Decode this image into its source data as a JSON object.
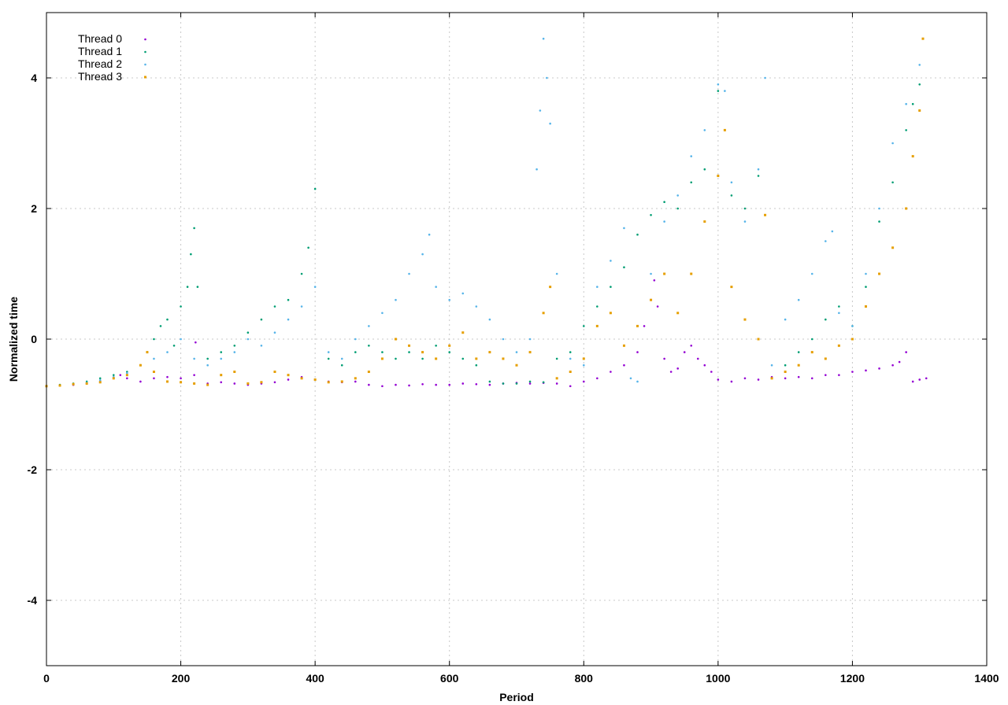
{
  "chart_data": {
    "type": "scatter",
    "title": "",
    "xlabel": "Period",
    "ylabel": "Normalized time",
    "xlim": [
      0,
      1400
    ],
    "ylim": [
      -5,
      5
    ],
    "xticks": [
      0,
      200,
      400,
      600,
      800,
      1000,
      1200,
      1400
    ],
    "yticks": [
      -4,
      -2,
      0,
      2,
      4
    ],
    "xtick_labels": [
      "0",
      "200",
      "400",
      "600",
      "800",
      "1000",
      "1200",
      "1400"
    ],
    "ytick_labels": [
      "-4",
      "-2",
      "0",
      "2",
      "4"
    ],
    "grid": true,
    "legend_position": "top-left",
    "series": [
      {
        "name": "Thread 0",
        "color": "#9400d3",
        "marker": "dot",
        "x": [
          0,
          20,
          40,
          60,
          80,
          100,
          110,
          120,
          140,
          160,
          180,
          200,
          220,
          222,
          240,
          260,
          280,
          300,
          320,
          340,
          360,
          380,
          400,
          420,
          440,
          460,
          480,
          500,
          520,
          540,
          560,
          580,
          600,
          620,
          640,
          660,
          680,
          700,
          720,
          740,
          760,
          780,
          800,
          820,
          840,
          860,
          880,
          890,
          900,
          905,
          910,
          920,
          930,
          940,
          950,
          960,
          970,
          980,
          990,
          1000,
          1020,
          1040,
          1060,
          1080,
          1100,
          1120,
          1140,
          1160,
          1180,
          1200,
          1220,
          1240,
          1260,
          1270,
          1280,
          1290,
          1300,
          1310
        ],
        "y": [
          -0.72,
          -0.71,
          -0.7,
          -0.68,
          -0.65,
          -0.6,
          -0.55,
          -0.6,
          -0.65,
          -0.6,
          -0.58,
          -0.6,
          -0.55,
          -0.05,
          -0.68,
          -0.66,
          -0.68,
          -0.7,
          -0.68,
          -0.66,
          -0.62,
          -0.58,
          -0.62,
          -0.65,
          -0.66,
          -0.65,
          -0.7,
          -0.72,
          -0.7,
          -0.71,
          -0.69,
          -0.7,
          -0.7,
          -0.68,
          -0.69,
          -0.7,
          -0.68,
          -0.67,
          -0.68,
          -0.67,
          -0.68,
          -0.72,
          -0.65,
          -0.6,
          -0.5,
          -0.4,
          -0.2,
          0.2,
          0.6,
          0.9,
          0.5,
          -0.3,
          -0.5,
          -0.45,
          -0.2,
          -0.1,
          -0.3,
          -0.4,
          -0.5,
          -0.62,
          -0.65,
          -0.6,
          -0.62,
          -0.58,
          -0.6,
          -0.58,
          -0.6,
          -0.55,
          -0.55,
          -0.5,
          -0.48,
          -0.45,
          -0.4,
          -0.35,
          -0.2,
          -0.65,
          -0.62,
          -0.6
        ]
      },
      {
        "name": "Thread 1",
        "color": "#009e73",
        "marker": "dot",
        "x": [
          0,
          20,
          40,
          60,
          80,
          100,
          120,
          140,
          150,
          160,
          170,
          180,
          190,
          200,
          210,
          215,
          220,
          225,
          240,
          260,
          280,
          300,
          320,
          340,
          360,
          380,
          390,
          400,
          420,
          440,
          460,
          480,
          500,
          520,
          540,
          560,
          580,
          600,
          620,
          640,
          660,
          680,
          700,
          720,
          740,
          760,
          780,
          800,
          820,
          840,
          860,
          880,
          900,
          920,
          940,
          960,
          980,
          1000,
          1020,
          1040,
          1060,
          1080,
          1100,
          1120,
          1140,
          1160,
          1180,
          1200,
          1220,
          1240,
          1260,
          1280,
          1290,
          1300
        ],
        "y": [
          -0.72,
          -0.7,
          -0.68,
          -0.65,
          -0.6,
          -0.55,
          -0.5,
          -0.4,
          -0.2,
          0.0,
          0.2,
          0.3,
          -0.1,
          0.5,
          0.8,
          1.3,
          1.7,
          0.8,
          -0.3,
          -0.2,
          -0.1,
          0.1,
          0.3,
          0.5,
          0.6,
          1.0,
          1.4,
          2.3,
          -0.3,
          -0.4,
          -0.2,
          -0.1,
          -0.2,
          -0.3,
          -0.2,
          -0.3,
          -0.1,
          -0.2,
          -0.3,
          -0.4,
          -0.65,
          -0.68,
          -0.68,
          -0.65,
          -0.66,
          -0.3,
          -0.2,
          0.2,
          0.5,
          0.8,
          1.1,
          1.6,
          1.9,
          2.1,
          2.0,
          2.4,
          2.6,
          3.8,
          2.2,
          2.0,
          2.5,
          -0.6,
          -0.4,
          -0.2,
          0.0,
          0.3,
          0.5,
          0.2,
          0.8,
          1.8,
          2.4,
          3.2,
          3.6,
          3.9
        ]
      },
      {
        "name": "Thread 2",
        "color": "#56b4e9",
        "marker": "dot",
        "x": [
          0,
          20,
          40,
          60,
          80,
          100,
          120,
          140,
          160,
          180,
          200,
          220,
          240,
          260,
          280,
          300,
          320,
          340,
          360,
          380,
          400,
          420,
          440,
          460,
          480,
          500,
          520,
          540,
          560,
          570,
          580,
          600,
          620,
          640,
          660,
          680,
          700,
          720,
          730,
          735,
          740,
          745,
          750,
          760,
          780,
          800,
          820,
          840,
          860,
          870,
          880,
          900,
          920,
          940,
          960,
          980,
          1000,
          1010,
          1020,
          1040,
          1060,
          1070,
          1080,
          1100,
          1120,
          1140,
          1160,
          1170,
          1180,
          1200,
          1220,
          1240,
          1260,
          1280,
          1300,
          1305
        ],
        "y": [
          -0.72,
          -0.71,
          -0.69,
          -0.67,
          -0.63,
          -0.58,
          -0.52,
          -0.4,
          -0.3,
          -0.2,
          0.0,
          -0.3,
          -0.4,
          -0.3,
          -0.2,
          0.0,
          -0.1,
          0.1,
          0.3,
          0.5,
          0.8,
          -0.2,
          -0.3,
          0.0,
          0.2,
          0.4,
          0.6,
          1.0,
          1.3,
          1.6,
          0.8,
          0.6,
          0.7,
          0.5,
          0.3,
          0.0,
          -0.2,
          0.0,
          2.6,
          3.5,
          4.6,
          4.0,
          3.3,
          1.0,
          -0.3,
          -0.4,
          0.8,
          1.2,
          1.7,
          -0.6,
          -0.65,
          1.0,
          1.8,
          2.2,
          2.8,
          3.2,
          3.9,
          3.8,
          2.4,
          1.8,
          2.6,
          4.0,
          -0.4,
          0.3,
          0.6,
          1.0,
          1.5,
          1.65,
          0.4,
          0.2,
          1.0,
          2.0,
          3.0,
          3.6,
          4.2,
          4.6
        ]
      },
      {
        "name": "Thread 3",
        "color": "#e69f00",
        "marker": "square",
        "x": [
          0,
          20,
          40,
          60,
          80,
          100,
          120,
          140,
          150,
          160,
          180,
          200,
          220,
          240,
          260,
          280,
          300,
          320,
          340,
          360,
          380,
          400,
          420,
          440,
          460,
          480,
          500,
          520,
          540,
          560,
          580,
          600,
          620,
          640,
          660,
          680,
          700,
          720,
          740,
          750,
          760,
          780,
          800,
          820,
          840,
          860,
          880,
          900,
          920,
          940,
          960,
          980,
          1000,
          1010,
          1020,
          1040,
          1060,
          1070,
          1080,
          1100,
          1120,
          1140,
          1160,
          1180,
          1200,
          1220,
          1240,
          1260,
          1280,
          1290,
          1300,
          1305
        ],
        "y": [
          -0.72,
          -0.71,
          -0.69,
          -0.68,
          -0.66,
          -0.6,
          -0.55,
          -0.4,
          -0.2,
          -0.5,
          -0.65,
          -0.66,
          -0.68,
          -0.7,
          -0.55,
          -0.5,
          -0.68,
          -0.66,
          -0.5,
          -0.55,
          -0.6,
          -0.62,
          -0.66,
          -0.65,
          -0.6,
          -0.5,
          -0.3,
          0.0,
          -0.1,
          -0.2,
          -0.3,
          -0.1,
          0.1,
          -0.3,
          -0.2,
          -0.3,
          -0.4,
          -0.2,
          0.4,
          0.8,
          -0.6,
          -0.5,
          -0.3,
          0.2,
          0.4,
          -0.1,
          0.2,
          0.6,
          1.0,
          0.4,
          1.0,
          1.8,
          2.5,
          3.2,
          0.8,
          0.3,
          0.0,
          1.9,
          -0.6,
          -0.5,
          -0.4,
          -0.2,
          -0.3,
          -0.1,
          0.0,
          0.5,
          1.0,
          1.4,
          2.0,
          2.8,
          3.5,
          4.6
        ]
      }
    ]
  }
}
